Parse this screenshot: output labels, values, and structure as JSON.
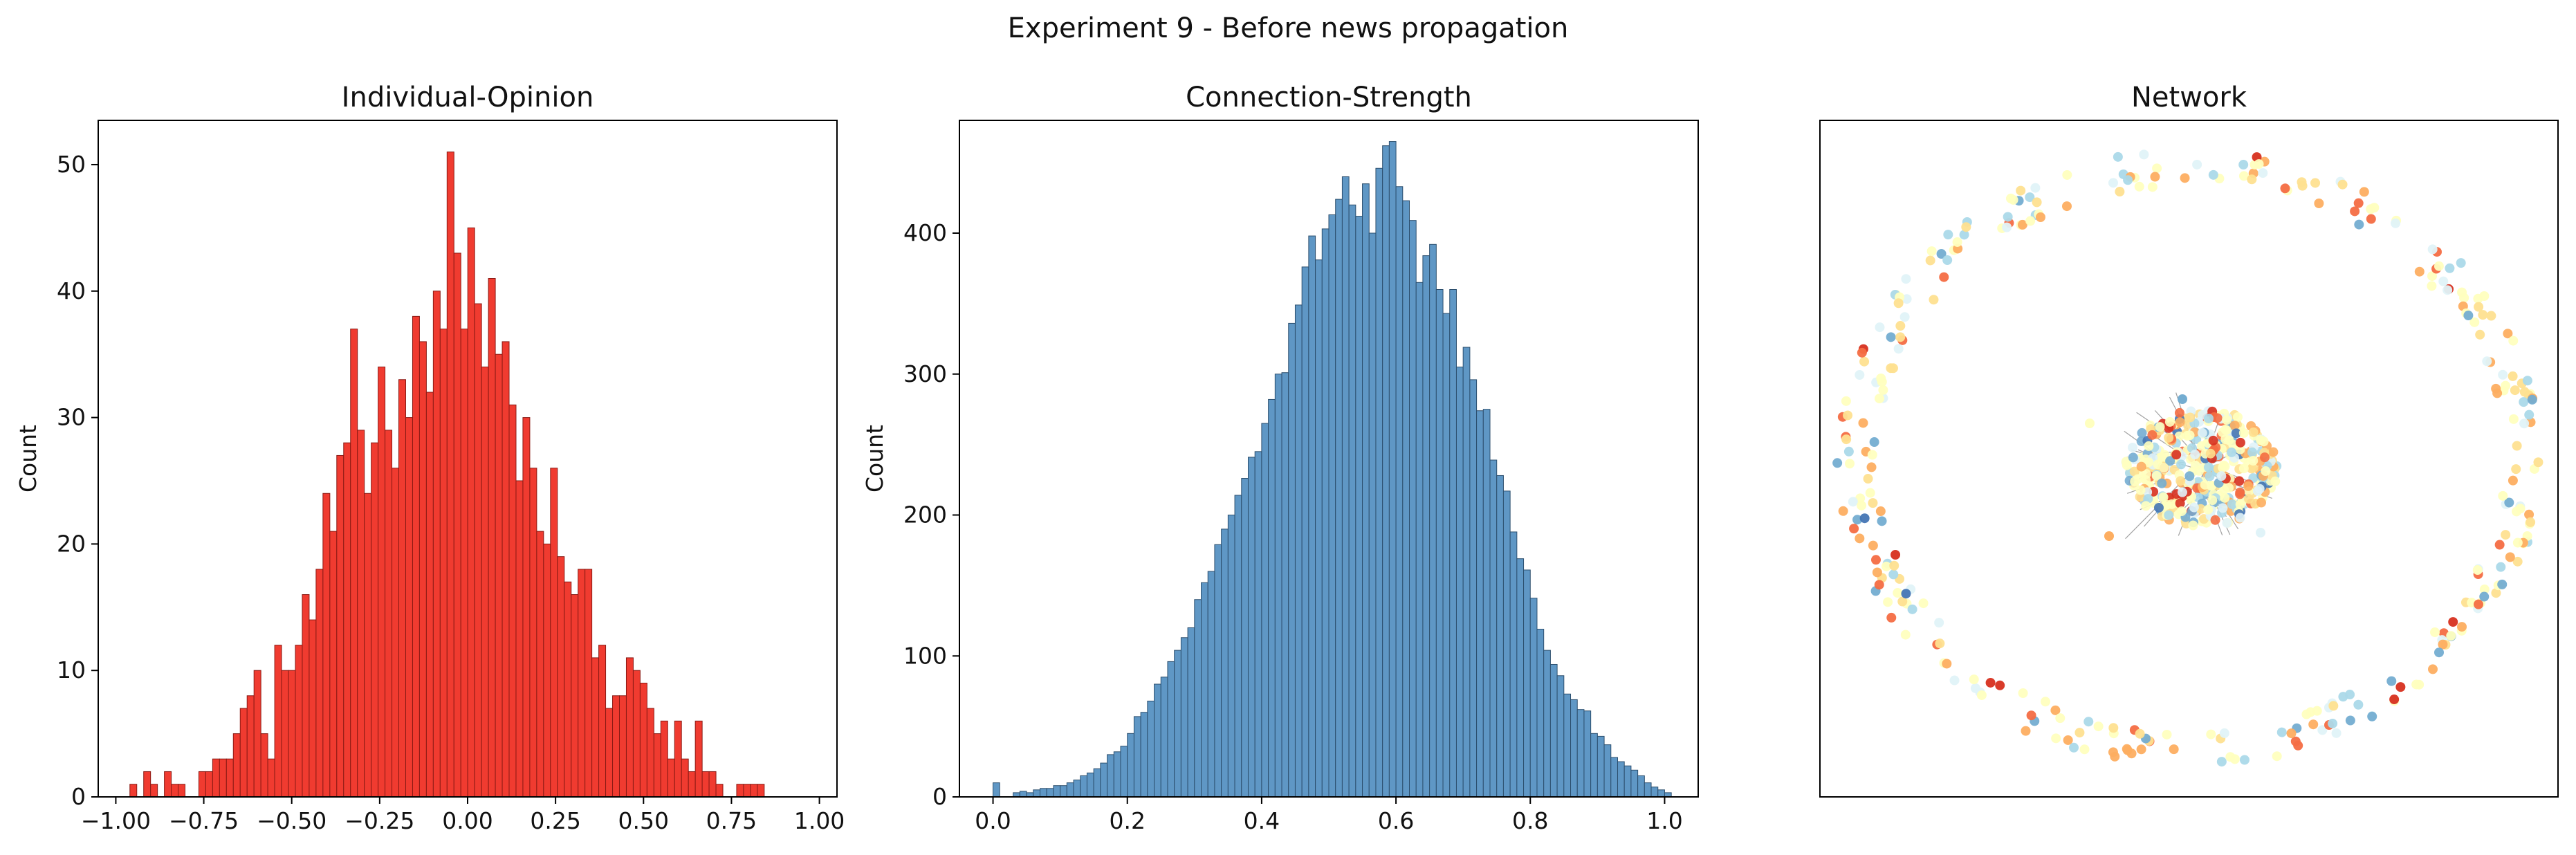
{
  "figure": {
    "suptitle": "Experiment 9 - Before news propagation"
  },
  "colors": {
    "opinion_bar": "#f03b30",
    "opinion_edge": "#8a1a14",
    "strength_bar": "#5f97c5",
    "strength_edge": "#2c4f6e",
    "node_palette": [
      "#d7301f",
      "#f46d43",
      "#fdae61",
      "#fee090",
      "#ffffbf",
      "#e0f3f8",
      "#abd9e9",
      "#74add1",
      "#4575b4"
    ]
  },
  "chart_data": [
    {
      "type": "bar",
      "title": "Individual-Opinion",
      "ylabel": "Count",
      "xlim": [
        -1.05,
        1.05
      ],
      "ylim": [
        0,
        53.5
      ],
      "xticks": [
        -1.0,
        -0.75,
        -0.5,
        -0.25,
        0.0,
        0.25,
        0.5,
        0.75,
        1.0
      ],
      "xtick_labels": [
        "−1.00",
        "−0.75",
        "−0.50",
        "−0.25",
        "0.00",
        "0.25",
        "0.50",
        "0.75",
        "1.00"
      ],
      "yticks": [
        0,
        10,
        20,
        30,
        40,
        50
      ],
      "ytick_labels": [
        "0",
        "10",
        "20",
        "30",
        "40",
        "50"
      ],
      "bin_start": -0.96,
      "bin_width": 0.0196,
      "values": [
        1,
        0,
        2,
        1,
        0,
        2,
        1,
        1,
        0,
        0,
        2,
        2,
        3,
        3,
        3,
        5,
        7,
        8,
        10,
        5,
        3,
        12,
        10,
        10,
        12,
        16,
        14,
        18,
        24,
        21,
        27,
        28,
        37,
        29,
        24,
        28,
        34,
        29,
        26,
        33,
        30,
        38,
        36,
        32,
        40,
        37,
        51,
        43,
        37,
        45,
        39,
        34,
        41,
        35,
        36,
        31,
        25,
        30,
        26,
        21,
        20,
        26,
        19,
        17,
        16,
        18,
        18,
        11,
        12,
        7,
        8,
        8,
        11,
        10,
        9,
        7,
        5,
        6,
        3,
        6,
        3,
        2,
        6,
        2,
        2,
        1,
        0,
        0,
        1,
        1,
        1,
        1
      ]
    },
    {
      "type": "bar",
      "title": "Connection-Strength",
      "ylabel": "Count",
      "xlim": [
        -0.05,
        1.05
      ],
      "ylim": [
        0,
        480
      ],
      "xticks": [
        0.0,
        0.2,
        0.4,
        0.6,
        0.8,
        1.0
      ],
      "xtick_labels": [
        "0.0",
        "0.2",
        "0.4",
        "0.6",
        "0.8",
        "1.0"
      ],
      "yticks": [
        0,
        100,
        200,
        300,
        400
      ],
      "ytick_labels": [
        "0",
        "100",
        "200",
        "300",
        "400"
      ],
      "bin_start": 0.0,
      "bin_width": 0.01,
      "values": [
        10,
        0,
        0,
        3,
        4,
        3,
        5,
        6,
        6,
        8,
        8,
        10,
        12,
        15,
        17,
        20,
        24,
        30,
        32,
        36,
        45,
        57,
        60,
        68,
        80,
        85,
        96,
        104,
        113,
        120,
        140,
        152,
        160,
        179,
        190,
        200,
        214,
        226,
        241,
        245,
        265,
        282,
        300,
        301,
        336,
        349,
        376,
        398,
        381,
        403,
        413,
        424,
        440,
        420,
        412,
        435,
        400,
        446,
        462,
        465,
        433,
        423,
        409,
        365,
        384,
        392,
        360,
        343,
        360,
        305,
        319,
        296,
        274,
        275,
        239,
        228,
        217,
        188,
        169,
        161,
        141,
        119,
        104,
        94,
        86,
        73,
        69,
        62,
        61,
        45,
        43,
        37,
        28,
        25,
        22,
        19,
        15,
        10,
        7,
        5,
        3
      ]
    },
    {
      "type": "scatter",
      "title": "Network",
      "xlim": [
        -1,
        1
      ],
      "ylim": [
        -1,
        1
      ],
      "axes_ticks": false
    }
  ]
}
